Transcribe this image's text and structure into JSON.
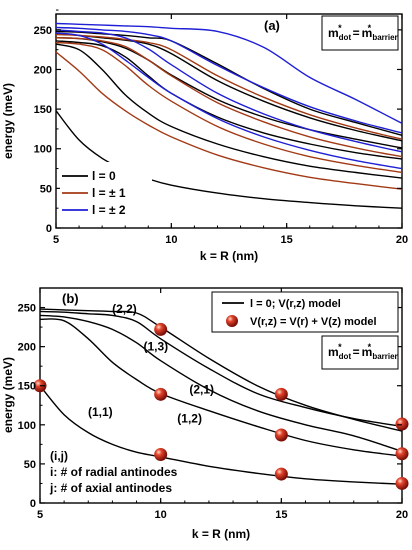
{
  "chart_data": [
    {
      "type": "line",
      "panel_label": "(a)",
      "xlabel": "k = R (nm)",
      "ylabel": "energy (meV)",
      "xlim": [
        5,
        20
      ],
      "ylim": [
        0,
        270
      ],
      "x_ticks": [
        "5",
        "10",
        "15",
        "20"
      ],
      "y_ticks": [
        "0",
        "50",
        "100",
        "150",
        "200",
        "250"
      ],
      "mass_box": {
        "m1": "m",
        "sub1": "dot",
        "eq": "=",
        "m2": "m",
        "sub2": "barrier",
        "star": "*"
      },
      "legend_position": "bottom-left",
      "legend": [
        {
          "label": "l = 0",
          "color": "#000000"
        },
        {
          "label": "l = ± 1",
          "color": "#a33a16"
        },
        {
          "label": "l = ± 2",
          "color": "#1f1fd6"
        }
      ],
      "series": [
        {
          "group": "l = 0",
          "color": "#000000",
          "x": [
            5,
            6,
            7,
            8,
            9,
            10,
            12,
            14,
            16,
            18,
            20
          ],
          "y": [
            148,
            111,
            88,
            73,
            62,
            54,
            44,
            37,
            32,
            28,
            25
          ]
        },
        {
          "group": "l = 0",
          "color": "#000000",
          "x": [
            5,
            6,
            7,
            8,
            9,
            10,
            12,
            14,
            16,
            18,
            20
          ],
          "y": [
            232,
            225,
            200,
            168,
            145,
            128,
            106,
            90,
            78,
            70,
            63
          ]
        },
        {
          "group": "l = 0",
          "color": "#000000",
          "x": [
            5,
            6,
            7,
            8,
            9,
            10,
            12,
            14,
            16,
            18,
            20
          ],
          "y": [
            236,
            234,
            230,
            216,
            192,
            170,
            140,
            120,
            106,
            95,
            87
          ]
        },
        {
          "group": "l = 0",
          "color": "#000000",
          "x": [
            5,
            6,
            7,
            8,
            9,
            10,
            12,
            14,
            16,
            18,
            20
          ],
          "y": [
            240,
            239,
            235,
            227,
            212,
            193,
            162,
            140,
            124,
            112,
            101
          ]
        },
        {
          "group": "l = 0",
          "color": "#000000",
          "x": [
            5,
            6,
            7,
            8,
            9,
            10,
            12,
            14,
            16,
            18,
            20
          ],
          "y": [
            245,
            243,
            240,
            237,
            232,
            220,
            186,
            160,
            139,
            123,
            110
          ]
        },
        {
          "group": "l = 0",
          "color": "#000000",
          "x": [
            5,
            6,
            7,
            8,
            9,
            10,
            12,
            14,
            16,
            18,
            20
          ],
          "y": [
            248,
            247,
            245,
            243,
            240,
            236,
            207,
            176,
            150,
            133,
            117
          ]
        },
        {
          "group": "l = ± 1",
          "color": "#a33a16",
          "x": [
            5,
            6,
            7,
            8,
            9,
            10,
            12,
            14,
            16,
            18,
            20
          ],
          "y": [
            222,
            198,
            170,
            148,
            130,
            115,
            92,
            76,
            64,
            56,
            49
          ]
        },
        {
          "group": "l = ± 1",
          "color": "#a33a16",
          "x": [
            5,
            6,
            7,
            8,
            9,
            10,
            12,
            14,
            16,
            18,
            20
          ],
          "y": [
            234,
            232,
            225,
            205,
            180,
            160,
            128,
            106,
            90,
            79,
            70
          ]
        },
        {
          "group": "l = ± 1",
          "color": "#a33a16",
          "x": [
            5,
            6,
            7,
            8,
            9,
            10,
            12,
            14,
            16,
            18,
            20
          ],
          "y": [
            240,
            239,
            236,
            229,
            212,
            192,
            158,
            134,
            115,
            101,
            90
          ]
        },
        {
          "group": "l = ± 1",
          "color": "#a33a16",
          "x": [
            5,
            6,
            7,
            8,
            9,
            10,
            12,
            14,
            16,
            18,
            20
          ],
          "y": [
            244,
            243,
            241,
            238,
            234,
            225,
            192,
            165,
            143,
            126,
            112
          ]
        },
        {
          "group": "l = ± 2",
          "color": "#1f1fd6",
          "x": [
            5,
            6,
            7,
            8,
            9,
            10,
            12,
            14,
            16,
            18,
            20
          ],
          "y": [
            246,
            243,
            232,
            212,
            190,
            170,
            138,
            115,
            98,
            85,
            75
          ]
        },
        {
          "group": "l = ± 2",
          "color": "#1f1fd6",
          "x": [
            5,
            6,
            7,
            8,
            9,
            10,
            12,
            14,
            16,
            18,
            20
          ],
          "y": [
            250,
            248,
            246,
            240,
            226,
            206,
            170,
            144,
            124,
            109,
            96
          ]
        },
        {
          "group": "l = ± 2",
          "color": "#1f1fd6",
          "x": [
            5,
            6,
            7,
            8,
            9,
            10,
            12,
            14,
            16,
            18,
            20
          ],
          "y": [
            253,
            252,
            250,
            248,
            244,
            236,
            205,
            177,
            153,
            135,
            120
          ]
        },
        {
          "group": "l = ± 2",
          "color": "#1f1fd6",
          "x": [
            5,
            6,
            7,
            8,
            9,
            10,
            12,
            14,
            16,
            18,
            20
          ],
          "y": [
            258,
            257,
            256,
            255,
            254,
            252,
            248,
            228,
            190,
            162,
            132
          ]
        }
      ]
    },
    {
      "type": "line",
      "panel_label": "(b)",
      "xlabel": "k = R (nm)",
      "ylabel": "energy (meV)",
      "xlim": [
        5,
        20
      ],
      "ylim": [
        0,
        275
      ],
      "x_ticks": [
        "5",
        "10",
        "15",
        "20"
      ],
      "y_ticks": [
        "0",
        "50",
        "100",
        "150",
        "200",
        "250"
      ],
      "mass_box": {
        "m1": "m",
        "sub1": "dot",
        "eq": "=",
        "m2": "m",
        "sub2": "barrier",
        "star": "*"
      },
      "legend_position": "top-right",
      "legend": [
        {
          "label": "l = 0; V(r,z) model",
          "kind": "line",
          "color": "#000000"
        },
        {
          "label": "V(r,z) = V(r) + V(z) model",
          "kind": "marker",
          "color": "#c8261a"
        }
      ],
      "series": [
        {
          "label": "(1,1)",
          "x": [
            5,
            6,
            7,
            8,
            9,
            10,
            12,
            14,
            16,
            18,
            20
          ],
          "y": [
            150,
            113,
            90,
            75,
            65,
            59,
            47,
            38,
            31,
            27,
            24
          ]
        },
        {
          "label": "(1,2)",
          "x": [
            5,
            6,
            7,
            8,
            9,
            10,
            12,
            14,
            16,
            18,
            20
          ],
          "y": [
            235,
            233,
            210,
            180,
            158,
            140,
            118,
            98,
            80,
            68,
            60
          ]
        },
        {
          "label": "(2,1)",
          "x": [
            5,
            6,
            7,
            8,
            9,
            10,
            12,
            14,
            16,
            18,
            20
          ],
          "y": [
            240,
            238,
            232,
            222,
            205,
            182,
            145,
            118,
            100,
            86,
            66
          ]
        },
        {
          "label": "(1,3)",
          "x": [
            5,
            6,
            7,
            8,
            9,
            10,
            12,
            14,
            16,
            18,
            20
          ],
          "y": [
            245,
            244,
            242,
            240,
            232,
            210,
            172,
            140,
            122,
            108,
            98
          ]
        },
        {
          "label": "(2,2)",
          "x": [
            5,
            6,
            7,
            8,
            9,
            10,
            12,
            14,
            16,
            18,
            20
          ],
          "y": [
            248,
            247,
            246,
            245,
            243,
            225,
            185,
            150,
            125,
            107,
            92
          ]
        }
      ],
      "markers": {
        "x": [
          5,
          10,
          10,
          10,
          15,
          15,
          15,
          20,
          20,
          20
        ],
        "y": [
          150,
          62,
          139,
          222,
          37,
          87,
          139,
          25,
          63,
          101
        ]
      },
      "annotations": [
        {
          "text": "(2,2)",
          "x": 8.5,
          "y": 243
        },
        {
          "text": "(1,3)",
          "x": 9.8,
          "y": 195
        },
        {
          "text": "(2,1)",
          "x": 11.7,
          "y": 140
        },
        {
          "text": "(1,2)",
          "x": 11.2,
          "y": 103
        },
        {
          "text": "(1,1)",
          "x": 7.5,
          "y": 111
        }
      ],
      "note_lines": [
        "(i,j)",
        "i: # of radial antinodes",
        "j: # of axial antinodes"
      ]
    }
  ]
}
